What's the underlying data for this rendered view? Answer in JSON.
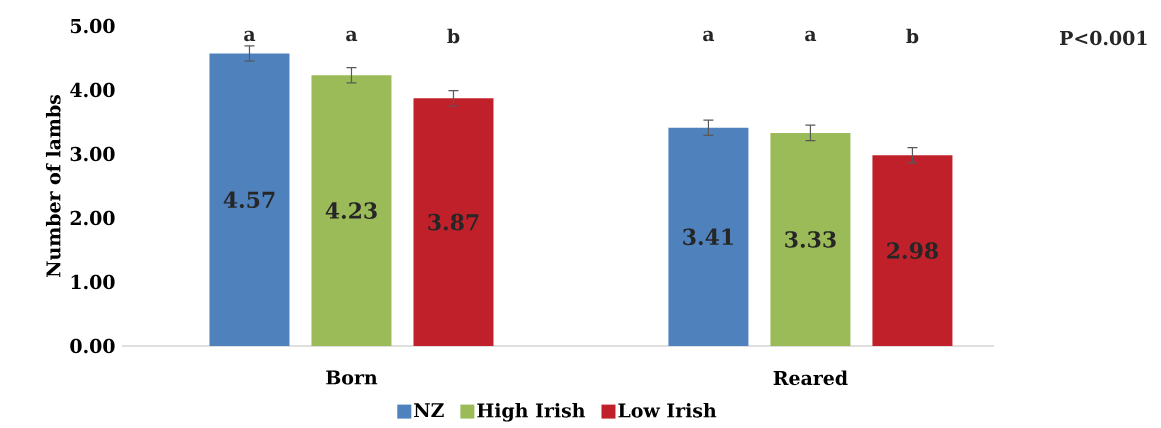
{
  "chart_data": {
    "type": "bar",
    "ylabel": "Number of lambs",
    "categories": [
      "Born",
      "Reared"
    ],
    "series": [
      {
        "name": "NZ",
        "color": "#4f81bd",
        "values": [
          4.57,
          3.41
        ],
        "errors": [
          0.12,
          0.12
        ]
      },
      {
        "name": "High Irish",
        "color": "#9bbb59",
        "values": [
          4.23,
          3.33
        ],
        "errors": [
          0.12,
          0.12
        ]
      },
      {
        "name": "Low Irish",
        "color": "#c0202a",
        "values": [
          3.87,
          2.98
        ],
        "errors": [
          0.12,
          0.12
        ]
      }
    ],
    "ylim": [
      0,
      5
    ],
    "yticks": [
      {
        "value": 0,
        "label": "0.00"
      },
      {
        "value": 1,
        "label": "1.00"
      },
      {
        "value": 2,
        "label": "2.00"
      },
      {
        "value": 3,
        "label": "3.00"
      },
      {
        "value": 4,
        "label": "4.00"
      },
      {
        "value": 5,
        "label": "5.00"
      }
    ],
    "data_labels": true,
    "legend": "bottom",
    "grid": false,
    "annotations": [
      "a",
      "a",
      "b",
      "a",
      "a",
      "b",
      "P<0.001"
    ]
  }
}
